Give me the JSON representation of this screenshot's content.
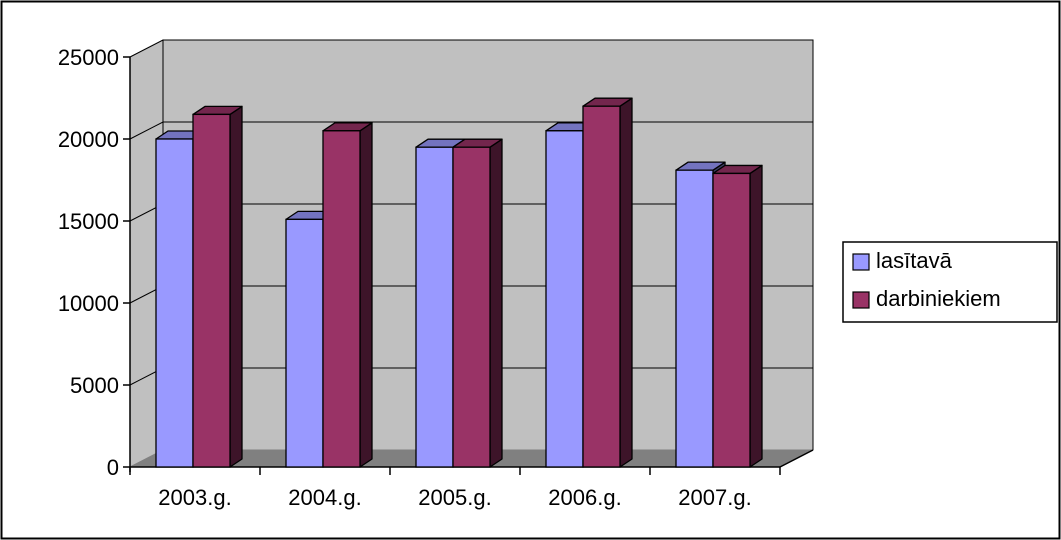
{
  "chart_data": {
    "type": "bar",
    "title": "",
    "xlabel": "",
    "ylabel": "",
    "categories": [
      "2003.g.",
      "2004.g.",
      "2005.g.",
      "2006.g.",
      "2007.g."
    ],
    "series": [
      {
        "name": "lasītavā",
        "values": [
          20000,
          15100,
          19500,
          20500,
          18100
        ],
        "color": "#9999ff"
      },
      {
        "name": "darbiniekiem",
        "values": [
          21500,
          20500,
          19500,
          22000,
          17900
        ],
        "color": "#993366"
      }
    ],
    "ylim": [
      0,
      25000
    ],
    "yticks": [
      "0",
      "5000",
      "10000",
      "15000",
      "20000",
      "25000"
    ],
    "grid": true,
    "legend_position": "right",
    "style": "3d-clustered-column",
    "colors": {
      "wall": "#c0c0c0",
      "floor": "#808080",
      "gridline": "#000000"
    }
  }
}
